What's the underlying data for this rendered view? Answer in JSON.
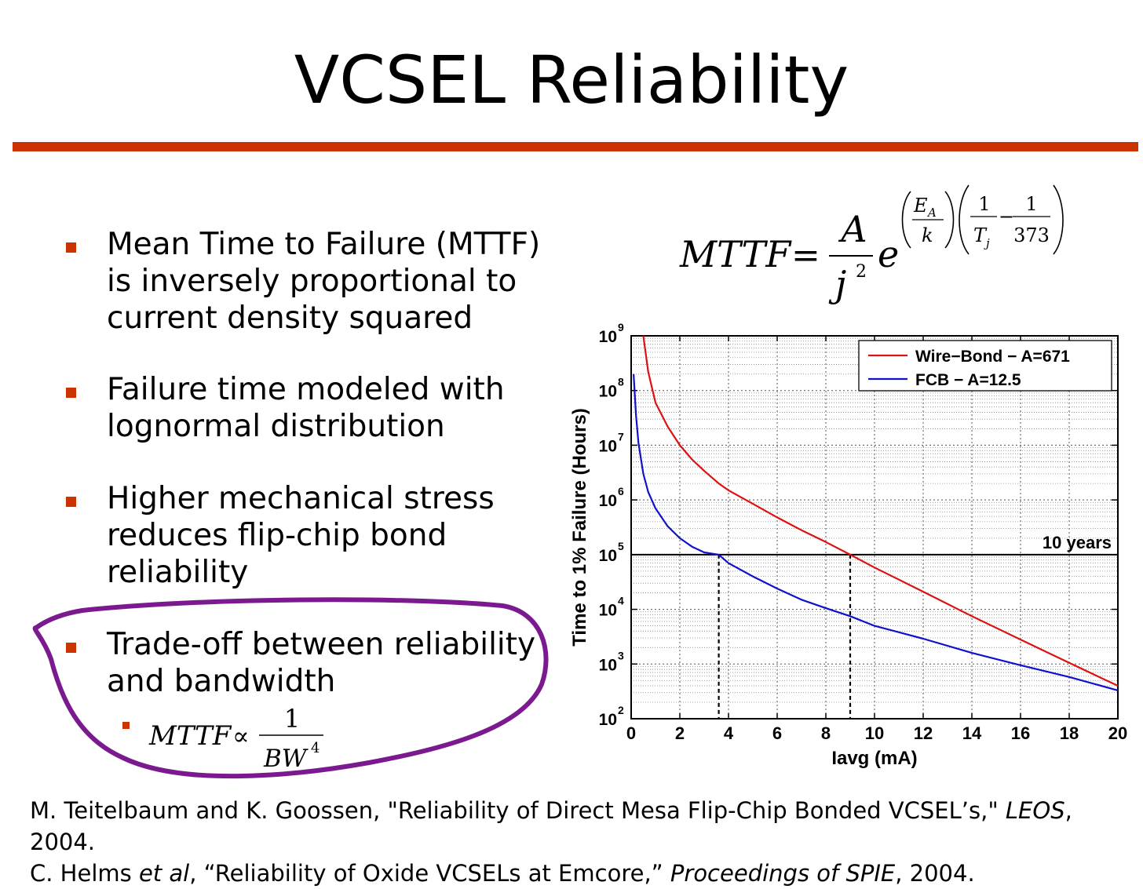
{
  "slide": {
    "title": "VCSEL Reliability",
    "accent_color": "#cc3300",
    "highlight_color": "#7b1a8f",
    "bullets": [
      {
        "lines": [
          "Mean Time to Failure (MTTF)",
          "is inversely proportional to",
          "current density squared"
        ]
      },
      {
        "lines": [
          "Failure time modeled with",
          "lognormal distribution"
        ]
      },
      {
        "lines": [
          "Higher mechanical stress",
          "reduces flip-chip bond",
          "reliability"
        ]
      },
      {
        "lines": [
          "Trade-off between reliability",
          "and bandwidth"
        ]
      }
    ],
    "sub_bullet": {
      "lhs": "MTTF",
      "op": "∝",
      "num": "1",
      "den": "BW",
      "exp": "4"
    },
    "main_formula": {
      "lhs": "MTTF",
      "eq": "=",
      "num": "A",
      "den": "j",
      "den_exp": "2",
      "base": "e",
      "ea": "E",
      "ea_sub": "A",
      "k": "k",
      "one_a": "1",
      "tj": "T",
      "tj_sub": "j",
      "one_b": "1",
      "t0": "373",
      "minus": "−"
    },
    "references": [
      {
        "pre": "M. Teitelbaum and K. Goossen, \"Reliability of Direct Mesa Flip-Chip Bonded VCSEL’s,\" ",
        "venue": "LEOS",
        "post": ", 2004."
      },
      {
        "pre": "C. Helms ",
        "etal": "et al",
        "mid": ", “Reliability of Oxide VCSELs at Emcore,” ",
        "venue": "Proceedings of SPIE",
        "post": ", 2004."
      }
    ]
  },
  "chart_data": {
    "type": "line",
    "xlabel": "Iavg (mA)",
    "ylabel": "Time to 1% Failure (Hours)",
    "xlim": [
      0,
      20
    ],
    "ylim_log10": [
      2,
      9
    ],
    "x_ticks": [
      "0",
      "2",
      "4",
      "6",
      "8",
      "10",
      "12",
      "14",
      "16",
      "18",
      "20"
    ],
    "y_ticks": [
      {
        "base": "10",
        "exp": "2"
      },
      {
        "base": "10",
        "exp": "3"
      },
      {
        "base": "10",
        "exp": "4"
      },
      {
        "base": "10",
        "exp": "5"
      },
      {
        "base": "10",
        "exp": "6"
      },
      {
        "base": "10",
        "exp": "7"
      },
      {
        "base": "10",
        "exp": "8"
      },
      {
        "base": "10",
        "exp": "9"
      }
    ],
    "grid": true,
    "legend_position": "top-right",
    "series": [
      {
        "name": "Wire−Bond − A=671",
        "color": "#dd1111",
        "x": [
          0.5,
          0.7,
          1,
          1.5,
          2,
          2.5,
          3,
          3.6,
          4,
          5,
          6,
          7,
          8,
          9,
          10,
          12,
          14,
          16,
          18,
          20
        ],
        "y": [
          1000000000.0,
          220000000.0,
          60000000.0,
          22000000.0,
          10000000.0,
          5500000.0,
          3400000.0,
          2000000.0,
          1500000.0,
          850000.0,
          480000.0,
          280000.0,
          170000.0,
          100000.0,
          58000.0,
          21000.0,
          7500.0,
          2800.0,
          1050.0,
          400.0
        ]
      },
      {
        "name": "FCB − A=12.5",
        "color": "#1111cc",
        "x": [
          0.1,
          0.2,
          0.3,
          0.5,
          0.7,
          1,
          1.5,
          2,
          2.5,
          3,
          3.6,
          4,
          5,
          6,
          7,
          8,
          9,
          10,
          12,
          14,
          16,
          18,
          20
        ],
        "y": [
          200000000.0,
          35000000.0,
          11000000.0,
          3000000.0,
          1400000.0,
          700000.0,
          330000.0,
          200000.0,
          140000.0,
          110000.0,
          100000.0,
          70000.0,
          40000.0,
          24000.0,
          15000.0,
          10500.0,
          7500.0,
          5000.0,
          2900.0,
          1600.0,
          950.0,
          580.0,
          330.0
        ]
      }
    ],
    "reference_line": {
      "y": 100000,
      "label": "10 years"
    },
    "crossings_x": [
      3.6,
      9.0
    ]
  }
}
